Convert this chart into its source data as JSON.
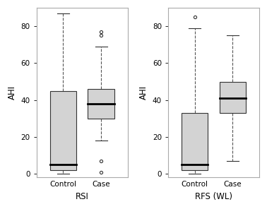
{
  "left_title": "RSI",
  "right_title": "RFS (WL)",
  "ylabel": "AHI",
  "ylim": [
    -2,
    90
  ],
  "yticks": [
    0,
    20,
    40,
    60,
    80
  ],
  "box_color": "#d3d3d3",
  "frame_color": "#aaaaaa",
  "box_linecolor": "#333333",
  "median_color": "black",
  "whisker_color": "#555555",
  "outlier_color": "#333333",
  "left": {
    "groups": [
      "Control",
      "Case"
    ],
    "control": {
      "q1": 2,
      "median": 5,
      "q3": 45,
      "whisker_low": 0,
      "whisker_high": 87,
      "outliers": []
    },
    "case": {
      "q1": 30,
      "median": 38,
      "q3": 46,
      "whisker_low": 18,
      "whisker_high": 69,
      "outliers": [
        75,
        77,
        7,
        1
      ]
    }
  },
  "right": {
    "groups": [
      "Control",
      "Case"
    ],
    "control": {
      "q1": 2,
      "median": 5,
      "q3": 33,
      "whisker_low": 0,
      "whisker_high": 79,
      "outliers": [
        85
      ]
    },
    "case": {
      "q1": 33,
      "median": 41,
      "q3": 50,
      "whisker_low": 7,
      "whisker_high": 75,
      "outliers": []
    }
  }
}
